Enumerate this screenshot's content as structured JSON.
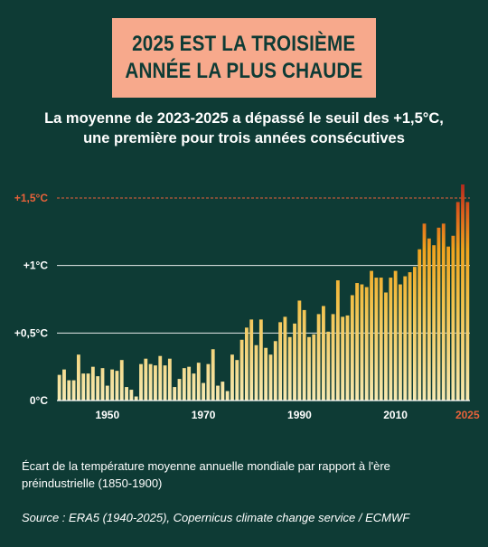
{
  "header": {
    "title_line1": "2025 EST LA TROISIÈME",
    "title_line2": "ANNÉE LA PLUS CHAUDE",
    "subtitle_line1": "La moyenne de 2023-2025 a dépassé le seuil des +1,5°C,",
    "subtitle_line2": "une première pour  trois années consécutives"
  },
  "footer": {
    "caption": "Écart de la température moyenne annuelle mondiale par rapport à l'ère préindustrielle (1850-1900)",
    "source": "Source : ERA5 (1940-2025), Copernicus climate change service / ECMWF"
  },
  "colors": {
    "background": "#0e3b35",
    "title_box": "#f7a98c",
    "threshold": "#e8623a",
    "bar_low": "#f6e9b2",
    "bar_mid": "#f0a21d",
    "bar_high": "#b32a1e"
  },
  "chart_data": {
    "type": "bar",
    "title": "",
    "xlabel": "",
    "ylabel": "",
    "ylim": [
      0,
      1.6
    ],
    "y_ticks": [
      {
        "value": 0,
        "label": "0°C"
      },
      {
        "value": 0.5,
        "label": "+0,5°C"
      },
      {
        "value": 1.0,
        "label": "+1°C"
      },
      {
        "value": 1.5,
        "label": "+1,5°C"
      }
    ],
    "x_ticks": [
      {
        "value": 1950,
        "label": "1950"
      },
      {
        "value": 1970,
        "label": "1970"
      },
      {
        "value": 1990,
        "label": "1990"
      },
      {
        "value": 2010,
        "label": "2010"
      },
      {
        "value": 2025,
        "label": "2025"
      }
    ],
    "threshold": 1.5,
    "grid": true,
    "x_start": 1940,
    "values": [
      0.19,
      0.23,
      0.15,
      0.15,
      0.34,
      0.2,
      0.2,
      0.25,
      0.18,
      0.24,
      0.11,
      0.23,
      0.22,
      0.3,
      0.1,
      0.08,
      0.03,
      0.27,
      0.31,
      0.27,
      0.26,
      0.33,
      0.26,
      0.31,
      0.1,
      0.16,
      0.24,
      0.25,
      0.2,
      0.28,
      0.13,
      0.27,
      0.38,
      0.11,
      0.14,
      0.07,
      0.34,
      0.3,
      0.45,
      0.54,
      0.6,
      0.41,
      0.6,
      0.39,
      0.34,
      0.44,
      0.58,
      0.62,
      0.47,
      0.57,
      0.74,
      0.67,
      0.47,
      0.49,
      0.64,
      0.7,
      0.51,
      0.64,
      0.89,
      0.62,
      0.63,
      0.78,
      0.87,
      0.86,
      0.84,
      0.96,
      0.91,
      0.91,
      0.8,
      0.91,
      0.96,
      0.86,
      0.92,
      0.95,
      0.99,
      1.12,
      1.31,
      1.2,
      1.15,
      1.28,
      1.31,
      1.14,
      1.22,
      1.47,
      1.6,
      1.47
    ]
  }
}
